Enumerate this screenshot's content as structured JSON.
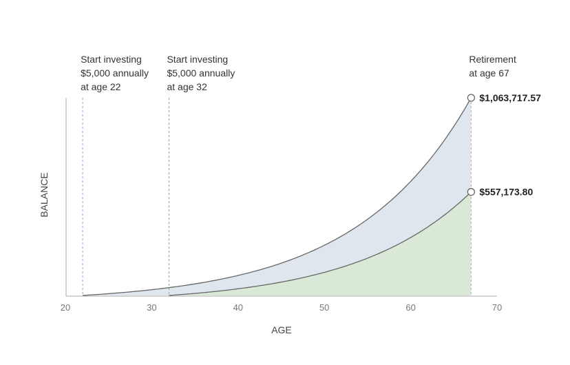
{
  "chart_data": {
    "type": "area",
    "xlabel": "AGE",
    "ylabel": "BALANCE",
    "xlim": [
      20,
      70
    ],
    "ylim": [
      0,
      1063717.57
    ],
    "x_ticks": [
      "20",
      "30",
      "40",
      "50",
      "60",
      "70"
    ],
    "y_ticks_shown": false,
    "grid": false,
    "series": [
      {
        "start_age": 22,
        "end_age": 67,
        "annual_contribution": 5000,
        "final_value": 1063717.57,
        "final_label": "$1,063,717.57",
        "fill_color": "#dfe6ed",
        "line_color": "#666666"
      },
      {
        "start_age": 32,
        "end_age": 67,
        "annual_contribution": 5000,
        "final_value": 557173.8,
        "final_label": "$557,173.80",
        "fill_color": "#dae8d7",
        "line_color": "#666666"
      }
    ],
    "markers": [
      {
        "x": 22,
        "lines": [
          "Start investing",
          "$5,000 annually",
          "at age 22"
        ],
        "color": "#7aa6d6"
      },
      {
        "x": 32,
        "lines": [
          "Start investing",
          "$5,000 annually",
          "at age 32"
        ],
        "color": "#7ab87a"
      },
      {
        "x": 67,
        "lines": [
          "Retirement",
          "at age 67"
        ],
        "color": "#b0b0b0"
      }
    ]
  }
}
